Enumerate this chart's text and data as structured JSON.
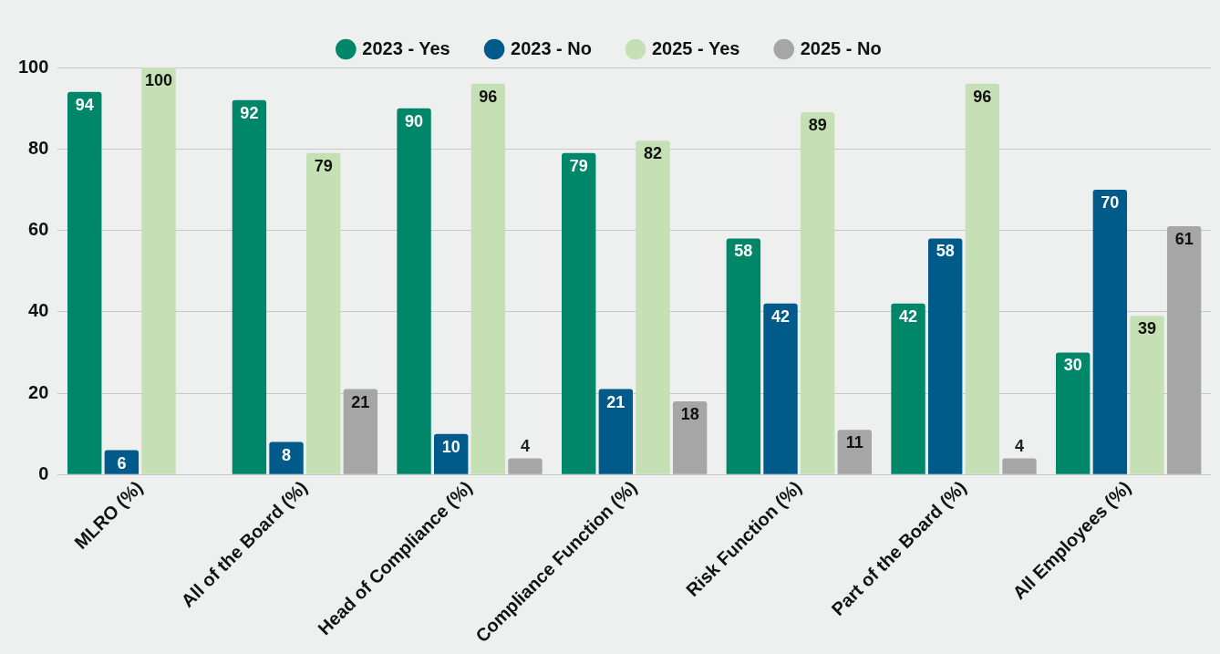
{
  "chart_data": {
    "type": "bar",
    "categories": [
      "MLRO (%)",
      "All of the Board (%)",
      "Head of Compliance (%)",
      "Compliance Function (%)",
      "Risk Function (%)",
      "Part of the Board (%)",
      "All Employees (%)"
    ],
    "series": [
      {
        "name": "2023 - Yes",
        "color": "#00876a",
        "values": [
          94,
          92,
          90,
          79,
          58,
          42,
          30
        ]
      },
      {
        "name": "2023 - No",
        "color": "#005a8a",
        "values": [
          6,
          8,
          10,
          21,
          42,
          58,
          70
        ]
      },
      {
        "name": "2025 - Yes",
        "color": "#c5e0b4",
        "values": [
          100,
          79,
          96,
          82,
          89,
          96,
          39
        ]
      },
      {
        "name": "2025 - No",
        "color": "#a6a6a6",
        "values": [
          null,
          21,
          4,
          18,
          11,
          4,
          61
        ]
      }
    ],
    "ylim": [
      0,
      100
    ],
    "yticks": [
      0,
      20,
      40,
      60,
      80,
      100
    ],
    "grid": "y",
    "legend": "top",
    "data_labels": true
  }
}
